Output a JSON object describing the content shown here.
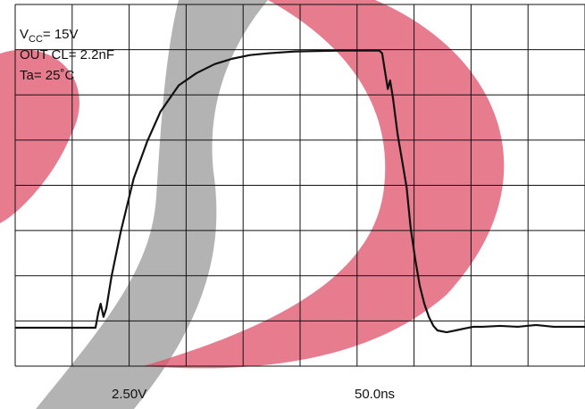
{
  "chart_data": {
    "type": "line",
    "conditions": {
      "vcc": {
        "symbol": "V",
        "subscript": "CC",
        "rest": "= 15V"
      },
      "load": "OUT CL= 2.2nF",
      "temp": "Ta= 25˚C"
    },
    "scale_labels": {
      "volts_per_div": "2.50V",
      "time_per_div": "50.0ns"
    },
    "xlim": [
      0,
      10
    ],
    "ylim": [
      0,
      8
    ],
    "grid": {
      "x": 10,
      "y": 8
    },
    "x": [
      0,
      1.41,
      1.46,
      1.5,
      1.55,
      1.6,
      1.69,
      1.85,
      2.08,
      2.32,
      2.55,
      2.87,
      3.18,
      3.5,
      3.81,
      4.12,
      4.44,
      4.91,
      5.69,
      6.39,
      6.44,
      6.49,
      6.54,
      6.58,
      6.63,
      6.71,
      6.79,
      6.87,
      6.94,
      7.02,
      7.1,
      7.18,
      7.26,
      7.34,
      7.41,
      7.57,
      7.73,
      7.88,
      8.04,
      8.2,
      8.51,
      8.82,
      9.14,
      9.45,
      10
    ],
    "series": [
      {
        "color": "#111111",
        "values": [
          0.85,
          0.85,
          1.19,
          1.38,
          1.09,
          1.28,
          1.98,
          2.96,
          4.15,
          4.98,
          5.63,
          6.21,
          6.48,
          6.68,
          6.8,
          6.88,
          6.92,
          6.96,
          6.98,
          6.98,
          6.92,
          6.52,
          6.13,
          6.32,
          5.93,
          5.14,
          4.55,
          3.95,
          3.06,
          2.37,
          1.78,
          1.38,
          1.09,
          0.89,
          0.79,
          0.75,
          0.79,
          0.83,
          0.87,
          0.87,
          0.89,
          0.87,
          0.91,
          0.87,
          0.87
        ]
      }
    ]
  }
}
